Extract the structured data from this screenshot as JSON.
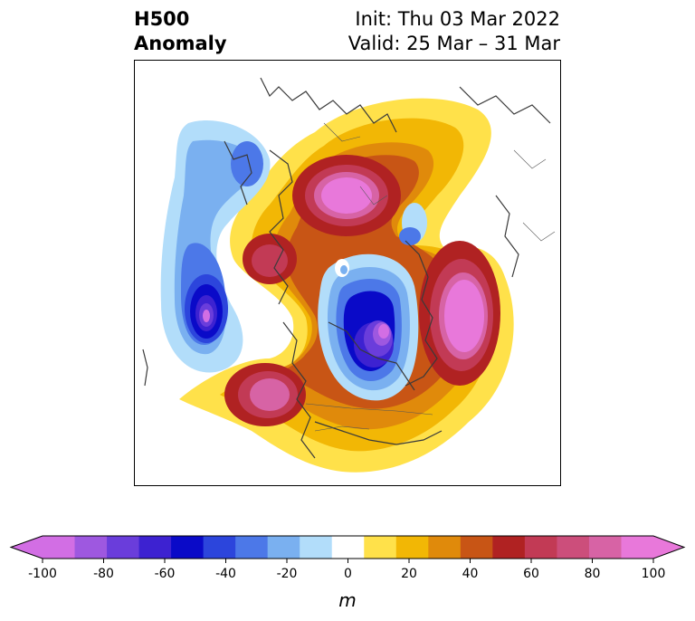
{
  "title": {
    "left_line1": "H500",
    "left_line2": "Anomaly",
    "right_line1": "Init: Thu 03 Mar 2022",
    "right_line2": "Valid: 25 Mar – 31 Mar"
  },
  "map": {
    "projection": "north-polar-stereographic",
    "field": "500 hPa geopotential height anomaly"
  },
  "colorbar": {
    "label": "m",
    "ticks": [
      "-100",
      "-80",
      "-60",
      "-40",
      "-20",
      "0",
      "20",
      "40",
      "60",
      "80",
      "100"
    ],
    "levels": [
      -100,
      -90,
      -80,
      -70,
      -60,
      -50,
      -40,
      -30,
      -20,
      -10,
      10,
      20,
      30,
      40,
      50,
      60,
      70,
      80,
      90,
      100
    ],
    "colors": [
      "#d26ee4",
      "#9e58e0",
      "#6a3ddb",
      "#3d22d1",
      "#0a0ac8",
      "#2c45dc",
      "#4c78e8",
      "#7ab0f0",
      "#b2ddfa",
      "#ffffff",
      "#ffe14a",
      "#f2b705",
      "#e08a0b",
      "#c85515",
      "#b02222",
      "#c23a55",
      "#cc4e7b",
      "#d763a5",
      "#e878da"
    ],
    "extend_min_color": "#d26ee4",
    "extend_max_color": "#e878da"
  }
}
